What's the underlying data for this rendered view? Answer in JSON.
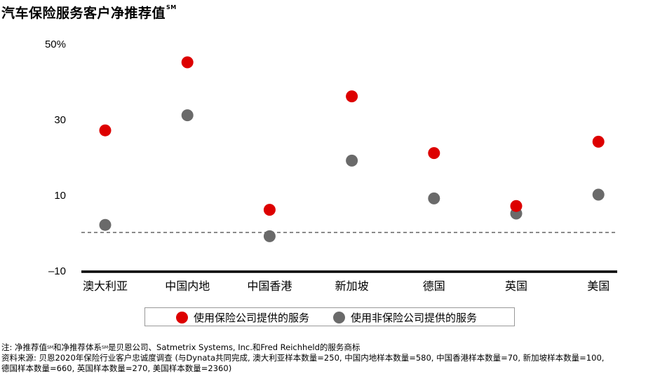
{
  "title": "汽车保险服务客户净推荐值",
  "title_sup": "SM",
  "chart_data": {
    "type": "scatter",
    "categories": [
      "澳大利亚",
      "中国内地",
      "中国香港",
      "新加坡",
      "德国",
      "英国",
      "美国"
    ],
    "series": [
      {
        "name": "使用保险公司提供的服务",
        "color": "#dd0000",
        "values": [
          27,
          45,
          6,
          36,
          21,
          7,
          24
        ]
      },
      {
        "name": "使用非保险公司提供的服务",
        "color": "#6a6a6a",
        "values": [
          2,
          31,
          -1,
          19,
          9,
          5,
          10
        ]
      }
    ],
    "yticks": [
      "50%",
      "30",
      "10",
      "–10"
    ],
    "ytick_values": [
      50,
      30,
      10,
      -10
    ],
    "ylim": [
      -10,
      50
    ],
    "reference_line": 0
  },
  "notes": {
    "line1_a": "注: 净推荐值",
    "line1_sup1": "SM",
    "line1_b": "和净推荐体系",
    "line1_sup2": "SM",
    "line1_c": "是贝恩公司、Satmetrix Systems, Inc.和Fred Reichheld的服务商标",
    "line2": "资料来源: 贝恩2020年保险行业客户忠诚度调查 (与Dynata共同完成, 澳大利亚样本数量=250, 中国内地样本数量=580, 中国香港样本数量=70, 新加坡样本数量=100,",
    "line3": "德国样本数量=660, 英国样本数量=270, 美国样本数量=2360)"
  }
}
